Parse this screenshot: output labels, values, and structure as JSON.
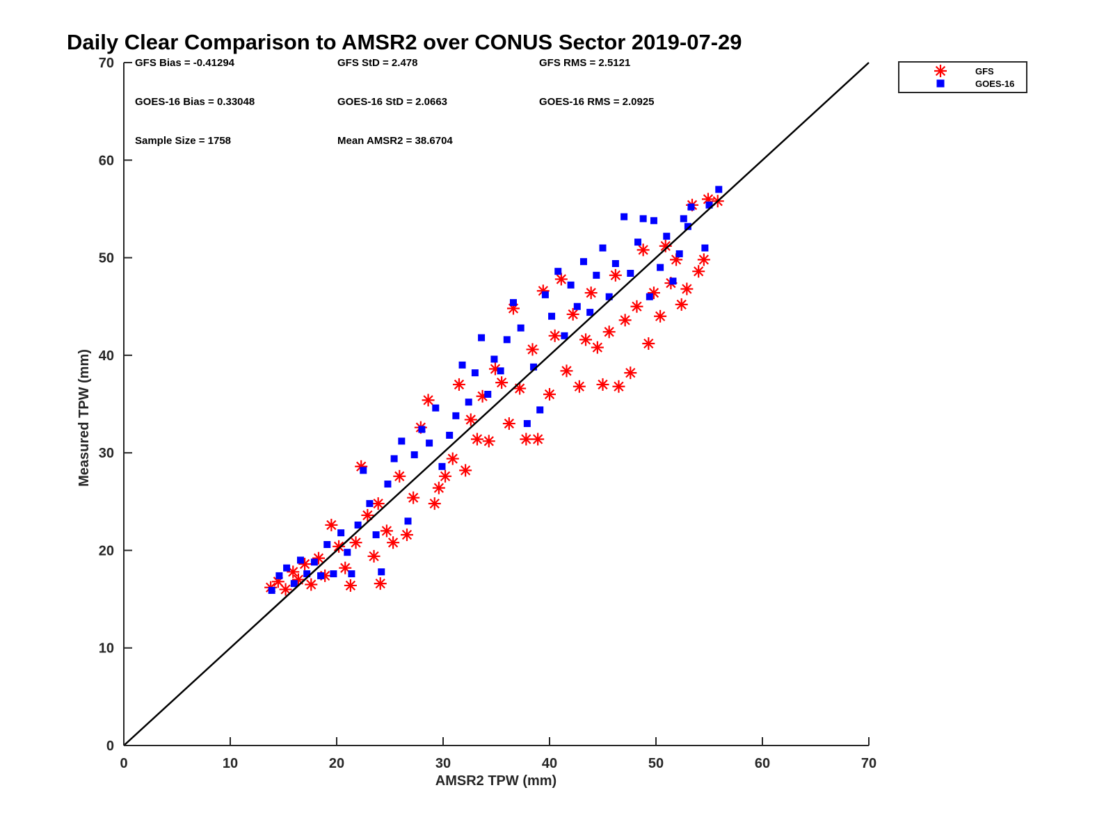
{
  "chart_data": {
    "type": "scatter",
    "title": "Daily Clear Comparison to AMSR2 over CONUS Sector 2019-07-29",
    "xlabel": "AMSR2 TPW (mm)",
    "ylabel": "Measured TPW (mm)",
    "xlim": [
      0,
      70
    ],
    "ylim": [
      0,
      70
    ],
    "xticks": [
      "0",
      "10",
      "20",
      "30",
      "40",
      "50",
      "60",
      "70"
    ],
    "yticks": [
      "0",
      "10",
      "20",
      "30",
      "40",
      "50",
      "60",
      "70"
    ],
    "grid": false,
    "legend_position": "outside-top-right",
    "reference_line": {
      "type": "identity",
      "from": [
        0,
        0
      ],
      "to": [
        70,
        70
      ],
      "color": "#000000"
    },
    "stats": [
      {
        "row": 0,
        "col": 0,
        "text": "GFS Bias = -0.41294"
      },
      {
        "row": 0,
        "col": 1,
        "text": "GFS StD = 2.478"
      },
      {
        "row": 0,
        "col": 2,
        "text": "GFS RMS = 2.5121"
      },
      {
        "row": 1,
        "col": 0,
        "text": "GOES-16 Bias = 0.33048"
      },
      {
        "row": 1,
        "col": 1,
        "text": "GOES-16 StD = 2.0663"
      },
      {
        "row": 1,
        "col": 2,
        "text": "GOES-16 RMS = 2.0925"
      },
      {
        "row": 2,
        "col": 0,
        "text": "Sample Size = 1758"
      },
      {
        "row": 2,
        "col": 1,
        "text": "Mean AMSR2 = 38.6704"
      }
    ],
    "series": [
      {
        "name": "GFS",
        "marker": "asterisk",
        "color": "#ff0000",
        "points": [
          [
            13.8,
            16.2
          ],
          [
            14.5,
            16.8
          ],
          [
            15.2,
            16.0
          ],
          [
            15.9,
            17.8
          ],
          [
            16.4,
            17.0
          ],
          [
            17.0,
            18.6
          ],
          [
            17.6,
            16.5
          ],
          [
            18.3,
            19.2
          ],
          [
            18.9,
            17.4
          ],
          [
            19.5,
            22.6
          ],
          [
            20.2,
            20.4
          ],
          [
            20.8,
            18.2
          ],
          [
            21.3,
            16.4
          ],
          [
            21.8,
            20.8
          ],
          [
            22.3,
            28.6
          ],
          [
            22.9,
            23.6
          ],
          [
            23.5,
            19.4
          ],
          [
            23.9,
            24.8
          ],
          [
            24.1,
            16.6
          ],
          [
            24.7,
            22.0
          ],
          [
            25.3,
            20.8
          ],
          [
            25.9,
            27.6
          ],
          [
            26.6,
            21.6
          ],
          [
            27.2,
            25.4
          ],
          [
            27.9,
            32.6
          ],
          [
            28.6,
            35.4
          ],
          [
            29.2,
            24.8
          ],
          [
            29.6,
            26.4
          ],
          [
            30.2,
            27.6
          ],
          [
            30.9,
            29.4
          ],
          [
            31.5,
            37.0
          ],
          [
            32.1,
            28.2
          ],
          [
            32.6,
            33.4
          ],
          [
            33.2,
            31.4
          ],
          [
            33.7,
            35.8
          ],
          [
            34.3,
            31.2
          ],
          [
            34.9,
            38.6
          ],
          [
            35.5,
            37.2
          ],
          [
            36.2,
            33.0
          ],
          [
            36.6,
            44.8
          ],
          [
            37.2,
            36.6
          ],
          [
            37.8,
            31.4
          ],
          [
            38.4,
            40.6
          ],
          [
            38.9,
            31.4
          ],
          [
            39.4,
            46.6
          ],
          [
            40.0,
            36.0
          ],
          [
            40.5,
            42.0
          ],
          [
            41.1,
            47.8
          ],
          [
            41.6,
            38.4
          ],
          [
            42.2,
            44.2
          ],
          [
            42.8,
            36.8
          ],
          [
            43.4,
            41.6
          ],
          [
            43.9,
            46.4
          ],
          [
            44.5,
            40.8
          ],
          [
            45.0,
            37.0
          ],
          [
            45.6,
            42.4
          ],
          [
            46.2,
            48.2
          ],
          [
            46.5,
            36.8
          ],
          [
            47.1,
            43.6
          ],
          [
            47.6,
            38.2
          ],
          [
            48.2,
            45.0
          ],
          [
            48.8,
            50.8
          ],
          [
            49.3,
            41.2
          ],
          [
            49.8,
            46.4
          ],
          [
            50.4,
            44.0
          ],
          [
            50.9,
            51.2
          ],
          [
            51.4,
            47.4
          ],
          [
            51.9,
            49.8
          ],
          [
            52.4,
            45.2
          ],
          [
            52.9,
            46.8
          ],
          [
            53.4,
            55.4
          ],
          [
            54.0,
            48.6
          ],
          [
            54.5,
            49.8
          ],
          [
            54.9,
            56.0
          ],
          [
            55.8,
            55.8
          ]
        ]
      },
      {
        "name": "GOES-16",
        "marker": "square",
        "color": "#0000ff",
        "points": [
          [
            13.9,
            15.9
          ],
          [
            14.6,
            17.4
          ],
          [
            15.3,
            18.2
          ],
          [
            16.0,
            16.6
          ],
          [
            16.6,
            19.0
          ],
          [
            17.2,
            17.6
          ],
          [
            17.9,
            18.8
          ],
          [
            18.5,
            17.4
          ],
          [
            19.1,
            20.6
          ],
          [
            19.7,
            17.6
          ],
          [
            20.4,
            21.8
          ],
          [
            21.0,
            19.8
          ],
          [
            21.4,
            17.6
          ],
          [
            22.0,
            22.6
          ],
          [
            22.5,
            28.2
          ],
          [
            23.1,
            24.8
          ],
          [
            23.7,
            21.6
          ],
          [
            24.2,
            17.8
          ],
          [
            24.8,
            26.8
          ],
          [
            25.4,
            29.4
          ],
          [
            26.1,
            31.2
          ],
          [
            26.7,
            23.0
          ],
          [
            27.3,
            29.8
          ],
          [
            28.0,
            32.4
          ],
          [
            28.7,
            31.0
          ],
          [
            29.3,
            34.6
          ],
          [
            29.9,
            28.6
          ],
          [
            30.6,
            31.8
          ],
          [
            31.2,
            33.8
          ],
          [
            31.8,
            39.0
          ],
          [
            32.4,
            35.2
          ],
          [
            33.0,
            38.2
          ],
          [
            33.6,
            41.8
          ],
          [
            34.2,
            36.0
          ],
          [
            34.8,
            39.6
          ],
          [
            35.4,
            38.4
          ],
          [
            36.0,
            41.6
          ],
          [
            36.6,
            45.4
          ],
          [
            37.3,
            42.8
          ],
          [
            37.9,
            33.0
          ],
          [
            38.5,
            38.8
          ],
          [
            39.1,
            34.4
          ],
          [
            39.6,
            46.2
          ],
          [
            40.2,
            44.0
          ],
          [
            40.8,
            48.6
          ],
          [
            41.4,
            42.0
          ],
          [
            42.0,
            47.2
          ],
          [
            42.6,
            45.0
          ],
          [
            43.2,
            49.6
          ],
          [
            43.8,
            44.4
          ],
          [
            44.4,
            48.2
          ],
          [
            45.0,
            51.0
          ],
          [
            45.6,
            46.0
          ],
          [
            46.2,
            49.4
          ],
          [
            47.0,
            54.2
          ],
          [
            47.6,
            48.4
          ],
          [
            48.3,
            51.6
          ],
          [
            48.8,
            54.0
          ],
          [
            49.4,
            46.0
          ],
          [
            49.8,
            53.8
          ],
          [
            50.4,
            49.0
          ],
          [
            51.0,
            52.2
          ],
          [
            51.6,
            47.6
          ],
          [
            52.2,
            50.4
          ],
          [
            52.6,
            54.0
          ],
          [
            53.0,
            53.2
          ],
          [
            53.3,
            55.2
          ],
          [
            54.6,
            51.0
          ],
          [
            55.0,
            55.4
          ],
          [
            55.9,
            57.0
          ]
        ]
      }
    ]
  }
}
